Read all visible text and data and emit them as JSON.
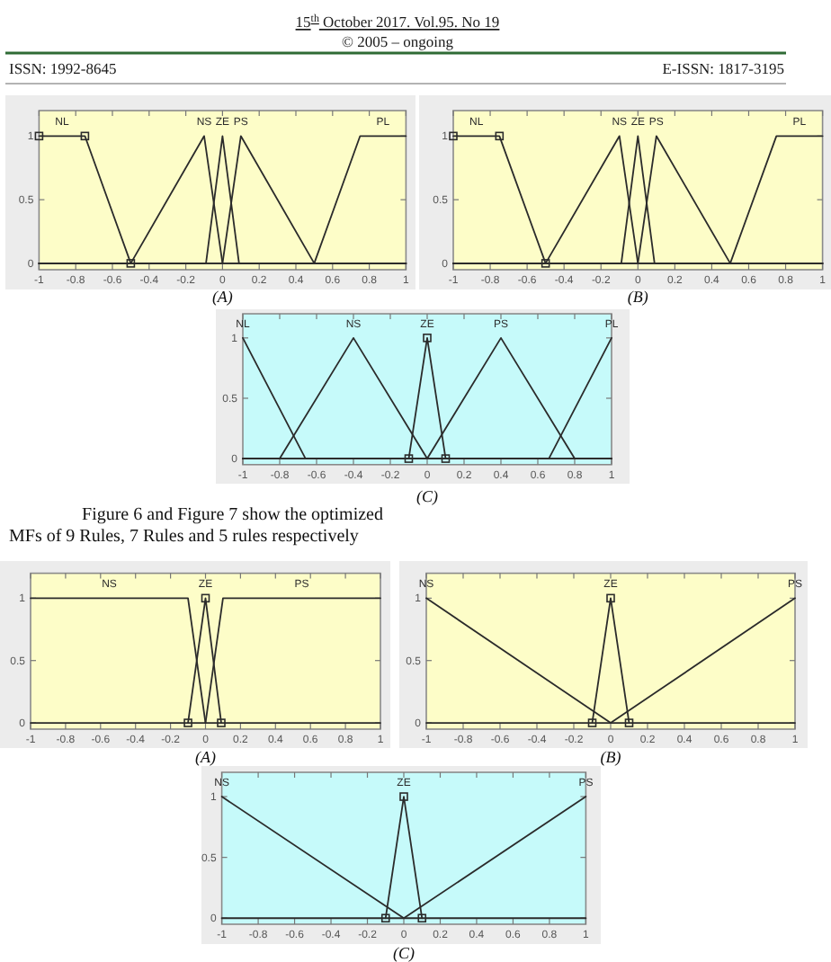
{
  "chart_data": [
    {
      "type": "other",
      "annotations": [
        "15$^{th}$ October 2017. Vol.95. No 19",
        "© 2005 – ongoing",
        "ISSN: 1992-8645",
        "E-ISSN: 1817-3195"
      ]
    },
    {
      "type": "line",
      "title": "(A)",
      "xlim": [
        -1,
        1
      ],
      "ylim": [
        -0.05,
        1.2
      ],
      "xticks": [
        -1,
        -0.8,
        -0.6,
        -0.4,
        -0.2,
        0,
        0.2,
        0.4,
        0.6,
        0.8,
        1
      ],
      "yticks": [
        0,
        0.5,
        1
      ],
      "series": [
        {
          "name": "NL",
          "color": "#2b2b2b",
          "marker": "square",
          "x": [
            -1,
            -0.75,
            -0.5
          ],
          "values": [
            1,
            1,
            0
          ]
        },
        {
          "name": "NS",
          "color": "#2b2b2b",
          "x": [
            -1,
            -0.5,
            -0.1,
            0,
            1
          ],
          "values": [
            0,
            0,
            1,
            0,
            0
          ]
        },
        {
          "name": "ZE",
          "color": "#2b2b2b",
          "x": [
            -1,
            -0.09,
            0,
            0.09,
            1
          ],
          "values": [
            0,
            0,
            1,
            0,
            0
          ]
        },
        {
          "name": "PS",
          "color": "#2b2b2b",
          "x": [
            -1,
            0,
            0.1,
            0.5,
            1
          ],
          "values": [
            0,
            0,
            1,
            0,
            0
          ]
        },
        {
          "name": "PL",
          "color": "#2b2b2b",
          "x": [
            -1,
            0.5,
            0.75,
            1
          ],
          "values": [
            0,
            0,
            1,
            1
          ]
        }
      ]
    },
    {
      "type": "line",
      "title": "(B)",
      "xlim": [
        -1,
        1
      ],
      "ylim": [
        -0.05,
        1.2
      ],
      "xticks": [
        -1,
        -0.8,
        -0.6,
        -0.4,
        -0.2,
        0,
        0.2,
        0.4,
        0.6,
        0.8,
        1
      ],
      "yticks": [
        0,
        0.5,
        1
      ],
      "series": [
        {
          "name": "NL",
          "color": "#2b2b2b",
          "marker": "square",
          "x": [
            -1,
            -0.75,
            -0.5
          ],
          "values": [
            1,
            1,
            0
          ]
        },
        {
          "name": "NS",
          "color": "#2b2b2b",
          "x": [
            -1,
            -0.5,
            -0.1,
            0,
            1
          ],
          "values": [
            0,
            0,
            1,
            0,
            0
          ]
        },
        {
          "name": "ZE",
          "color": "#2b2b2b",
          "x": [
            -1,
            -0.09,
            0,
            0.09,
            1
          ],
          "values": [
            0,
            0,
            1,
            0,
            0
          ]
        },
        {
          "name": "PS",
          "color": "#2b2b2b",
          "x": [
            -1,
            0,
            0.1,
            0.5,
            1
          ],
          "values": [
            0,
            0,
            1,
            0,
            0
          ]
        },
        {
          "name": "PL",
          "color": "#2b2b2b",
          "x": [
            -1,
            0.5,
            0.75,
            1
          ],
          "values": [
            0,
            0,
            1,
            1
          ]
        }
      ]
    },
    {
      "type": "line",
      "title": "(C)",
      "xlim": [
        -1,
        1
      ],
      "ylim": [
        -0.05,
        1.2
      ],
      "xticks": [
        -1,
        -0.8,
        -0.6,
        -0.4,
        -0.2,
        0,
        0.2,
        0.4,
        0.6,
        0.8,
        1
      ],
      "yticks": [
        0,
        0.5,
        1
      ],
      "series": [
        {
          "name": "NL",
          "color": "#2b2b2b",
          "x": [
            -1,
            -0.66,
            1
          ],
          "values": [
            1,
            0,
            0
          ]
        },
        {
          "name": "NS",
          "color": "#2b2b2b",
          "x": [
            -1,
            -0.8,
            -0.4,
            0,
            1
          ],
          "values": [
            0,
            0,
            1,
            0,
            0
          ]
        },
        {
          "name": "ZE",
          "color": "#2b2b2b",
          "marker": "square",
          "x": [
            -0.1,
            0,
            0.1
          ],
          "values": [
            0,
            1,
            0
          ]
        },
        {
          "name": "PS",
          "color": "#2b2b2b",
          "x": [
            -1,
            0,
            0.4,
            0.8,
            1
          ],
          "values": [
            0,
            0,
            1,
            0,
            0
          ]
        },
        {
          "name": "PL",
          "color": "#2b2b2b",
          "x": [
            -1,
            0.66,
            1
          ],
          "values": [
            0,
            0,
            1
          ]
        }
      ]
    },
    {
      "type": "other",
      "annotations": [
        "Figure 6 and Figure 7 show the optimized",
        "MFs of 9 Rules, 7 Rules and 5 rules respectively"
      ]
    },
    {
      "type": "line",
      "title": "(A)",
      "xlim": [
        -1,
        1
      ],
      "ylim": [
        -0.05,
        1.2
      ],
      "xticks": [
        -1,
        -0.8,
        -0.6,
        -0.4,
        -0.2,
        0,
        0.2,
        0.4,
        0.6,
        0.8,
        1
      ],
      "yticks": [
        0,
        0.5,
        1
      ],
      "series": [
        {
          "name": "NS",
          "color": "#2b2b2b",
          "x": [
            -1,
            -0.1,
            0,
            1
          ],
          "values": [
            1,
            1,
            0,
            0
          ]
        },
        {
          "name": "ZE",
          "color": "#2b2b2b",
          "marker": "square",
          "x": [
            -0.1,
            0,
            0.09
          ],
          "values": [
            0,
            1,
            0
          ]
        },
        {
          "name": "PS",
          "color": "#2b2b2b",
          "x": [
            -1,
            0,
            0.1,
            1
          ],
          "values": [
            0,
            0,
            1,
            1
          ]
        }
      ]
    },
    {
      "type": "line",
      "title": "(B)",
      "xlim": [
        -1,
        1
      ],
      "ylim": [
        -0.05,
        1.2
      ],
      "xticks": [
        -1,
        -0.8,
        -0.6,
        -0.4,
        -0.2,
        0,
        0.2,
        0.4,
        0.6,
        0.8,
        1
      ],
      "yticks": [
        0,
        0.5,
        1
      ],
      "series": [
        {
          "name": "NS",
          "color": "#2b2b2b",
          "x": [
            -1,
            0,
            1
          ],
          "values": [
            1,
            0,
            0
          ]
        },
        {
          "name": "ZE",
          "color": "#2b2b2b",
          "marker": "square",
          "x": [
            -0.1,
            0,
            0.1
          ],
          "values": [
            0,
            1,
            0
          ]
        },
        {
          "name": "PS",
          "color": "#2b2b2b",
          "x": [
            -1,
            0,
            1
          ],
          "values": [
            0,
            0,
            1
          ]
        }
      ]
    },
    {
      "type": "line",
      "title": "(C)",
      "xlim": [
        -1,
        1
      ],
      "ylim": [
        -0.05,
        1.2
      ],
      "xticks": [
        -1,
        -0.8,
        -0.6,
        -0.4,
        -0.2,
        0,
        0.2,
        0.4,
        0.6,
        0.8,
        1
      ],
      "yticks": [
        0,
        0.5,
        1
      ],
      "series": [
        {
          "name": "NS",
          "color": "#2b2b2b",
          "x": [
            -1,
            0,
            1
          ],
          "values": [
            1,
            0,
            0
          ]
        },
        {
          "name": "ZE",
          "color": "#2b2b2b",
          "marker": "square",
          "x": [
            -0.1,
            0,
            0.1
          ],
          "values": [
            0,
            1,
            0
          ]
        },
        {
          "name": "PS",
          "color": "#2b2b2b",
          "x": [
            -1,
            0,
            1
          ],
          "values": [
            0,
            0,
            1
          ]
        }
      ]
    }
  ]
}
